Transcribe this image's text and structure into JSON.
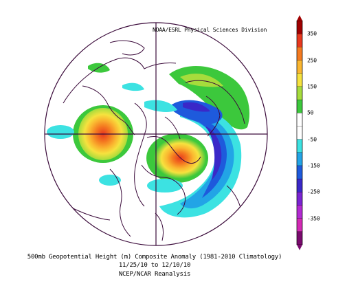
{
  "credit": "NOAA/ESRL Physical Sciences Division",
  "colorbar": {
    "labels": [
      "350",
      "250",
      "150",
      "50",
      "-50",
      "-150",
      "-250",
      "-350"
    ],
    "colors": [
      "#a00000",
      "#e8381e",
      "#f47a20",
      "#fab630",
      "#f6e23e",
      "#a6dc3c",
      "#3cc83c",
      "#ffffff",
      "#ffffff",
      "#3ce2e2",
      "#22a4e6",
      "#1e5adc",
      "#3a28c8",
      "#7a24d2",
      "#b22ad2",
      "#d22ab4",
      "#7a0a6e"
    ]
  },
  "caption": {
    "line1": "500mb Geopotential Height (m) Composite Anomaly (1981-2010 Climatology)",
    "line2": "11/25/10  to 12/10/10",
    "line3": "NCEP/NCAR Reanalysis"
  },
  "map": {
    "projection": "polar-stereographic-north",
    "map_outline_color": "#3a0a3a",
    "anomaly_centers": [
      {
        "region": "North Pacific",
        "sign": "positive"
      },
      {
        "region": "Greenland / Baffin",
        "sign": "positive"
      },
      {
        "region": "Scandinavia / Arctic",
        "sign": "positive"
      },
      {
        "region": "Western Europe",
        "sign": "negative"
      },
      {
        "region": "Siberia",
        "sign": "negative"
      }
    ]
  }
}
